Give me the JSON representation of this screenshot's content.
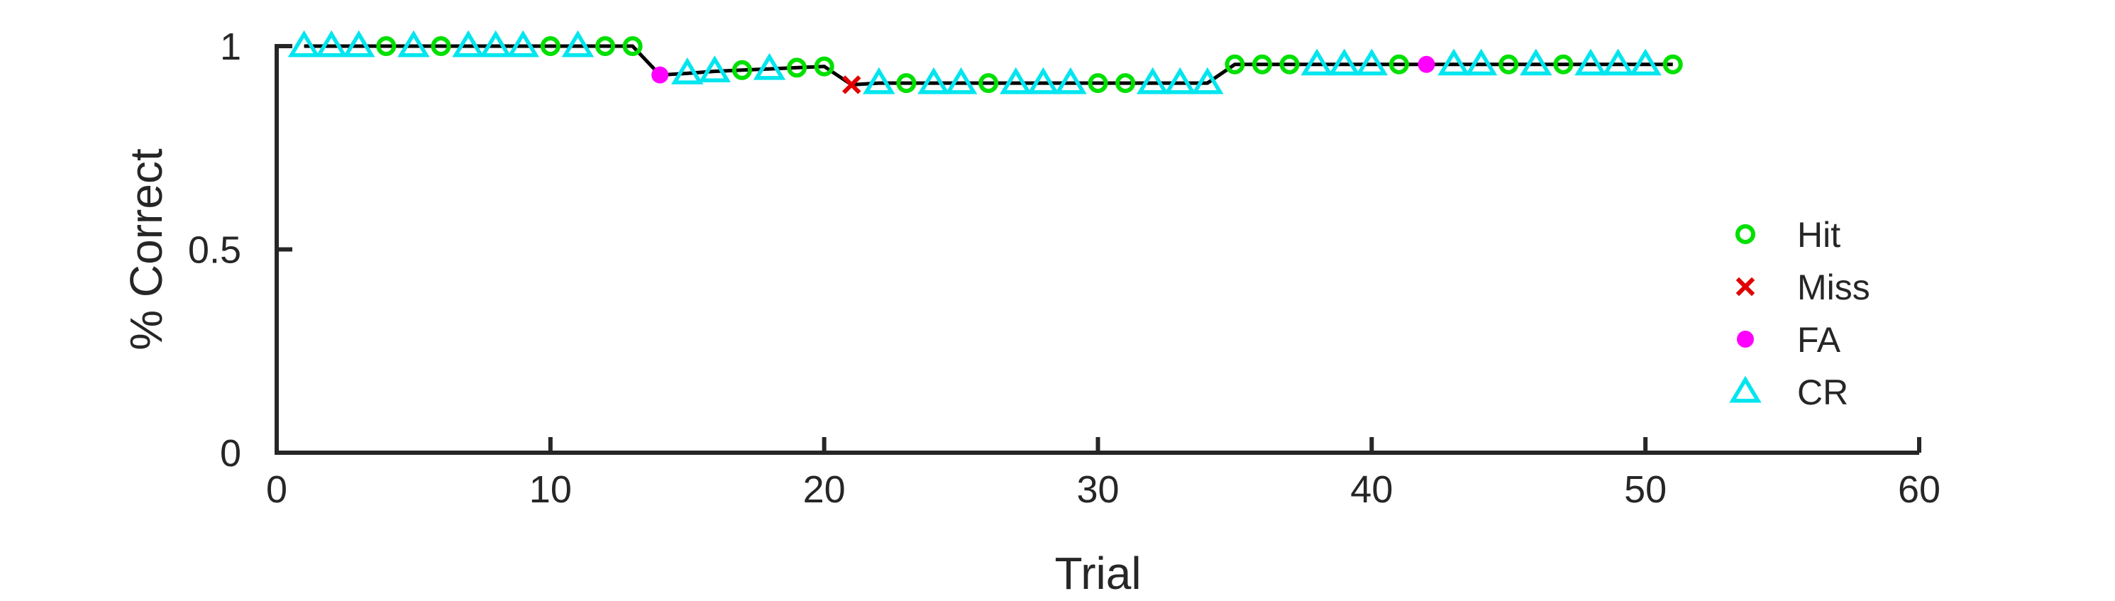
{
  "chart_data": {
    "type": "line",
    "title": "",
    "xlabel": "Trial",
    "ylabel": "% Correct",
    "xlim": [
      0,
      60
    ],
    "ylim": [
      0,
      1
    ],
    "xticks": [
      0,
      10,
      20,
      30,
      40,
      50,
      60
    ],
    "yticks": [
      0,
      0.5,
      1
    ],
    "grid": false,
    "legend_position": "right",
    "legend": [
      {
        "name": "Hit",
        "marker": "circle",
        "color": "#00e000"
      },
      {
        "name": "Miss",
        "marker": "x",
        "color": "#e00000"
      },
      {
        "name": "FA",
        "marker": "dot",
        "color": "#ff00ff"
      },
      {
        "name": "CR",
        "marker": "triangle",
        "color": "#00e5ee"
      }
    ],
    "line_color": "#000000",
    "points": [
      {
        "x": 1,
        "y": 1.0,
        "type": "CR"
      },
      {
        "x": 2,
        "y": 1.0,
        "type": "CR"
      },
      {
        "x": 3,
        "y": 1.0,
        "type": "CR"
      },
      {
        "x": 4,
        "y": 1.0,
        "type": "Hit"
      },
      {
        "x": 5,
        "y": 1.0,
        "type": "CR"
      },
      {
        "x": 6,
        "y": 1.0,
        "type": "Hit"
      },
      {
        "x": 7,
        "y": 1.0,
        "type": "CR"
      },
      {
        "x": 8,
        "y": 1.0,
        "type": "CR"
      },
      {
        "x": 9,
        "y": 1.0,
        "type": "CR"
      },
      {
        "x": 10,
        "y": 1.0,
        "type": "Hit"
      },
      {
        "x": 11,
        "y": 1.0,
        "type": "CR"
      },
      {
        "x": 12,
        "y": 1.0,
        "type": "Hit"
      },
      {
        "x": 13,
        "y": 1.0,
        "type": "Hit"
      },
      {
        "x": 14,
        "y": 0.929,
        "type": "FA"
      },
      {
        "x": 15,
        "y": 0.933,
        "type": "CR"
      },
      {
        "x": 16,
        "y": 0.938,
        "type": "CR"
      },
      {
        "x": 17,
        "y": 0.941,
        "type": "Hit"
      },
      {
        "x": 18,
        "y": 0.944,
        "type": "CR"
      },
      {
        "x": 19,
        "y": 0.947,
        "type": "Hit"
      },
      {
        "x": 20,
        "y": 0.95,
        "type": "Hit"
      },
      {
        "x": 21,
        "y": 0.905,
        "type": "Miss"
      },
      {
        "x": 22,
        "y": 0.909,
        "type": "CR"
      },
      {
        "x": 23,
        "y": 0.909,
        "type": "Hit"
      },
      {
        "x": 24,
        "y": 0.909,
        "type": "CR"
      },
      {
        "x": 25,
        "y": 0.909,
        "type": "CR"
      },
      {
        "x": 26,
        "y": 0.909,
        "type": "Hit"
      },
      {
        "x": 27,
        "y": 0.909,
        "type": "CR"
      },
      {
        "x": 28,
        "y": 0.909,
        "type": "CR"
      },
      {
        "x": 29,
        "y": 0.909,
        "type": "CR"
      },
      {
        "x": 30,
        "y": 0.909,
        "type": "Hit"
      },
      {
        "x": 31,
        "y": 0.909,
        "type": "Hit"
      },
      {
        "x": 32,
        "y": 0.909,
        "type": "CR"
      },
      {
        "x": 33,
        "y": 0.909,
        "type": "CR"
      },
      {
        "x": 34,
        "y": 0.909,
        "type": "CR"
      },
      {
        "x": 35,
        "y": 0.955,
        "type": "Hit"
      },
      {
        "x": 36,
        "y": 0.955,
        "type": "Hit"
      },
      {
        "x": 37,
        "y": 0.955,
        "type": "Hit"
      },
      {
        "x": 38,
        "y": 0.955,
        "type": "CR"
      },
      {
        "x": 39,
        "y": 0.955,
        "type": "CR"
      },
      {
        "x": 40,
        "y": 0.955,
        "type": "CR"
      },
      {
        "x": 41,
        "y": 0.955,
        "type": "Hit"
      },
      {
        "x": 42,
        "y": 0.955,
        "type": "FA"
      },
      {
        "x": 43,
        "y": 0.955,
        "type": "CR"
      },
      {
        "x": 44,
        "y": 0.955,
        "type": "CR"
      },
      {
        "x": 45,
        "y": 0.955,
        "type": "Hit"
      },
      {
        "x": 46,
        "y": 0.955,
        "type": "CR"
      },
      {
        "x": 47,
        "y": 0.955,
        "type": "Hit"
      },
      {
        "x": 48,
        "y": 0.955,
        "type": "CR"
      },
      {
        "x": 49,
        "y": 0.955,
        "type": "CR"
      },
      {
        "x": 50,
        "y": 0.955,
        "type": "CR"
      },
      {
        "x": 51,
        "y": 0.955,
        "type": "Hit"
      }
    ]
  }
}
